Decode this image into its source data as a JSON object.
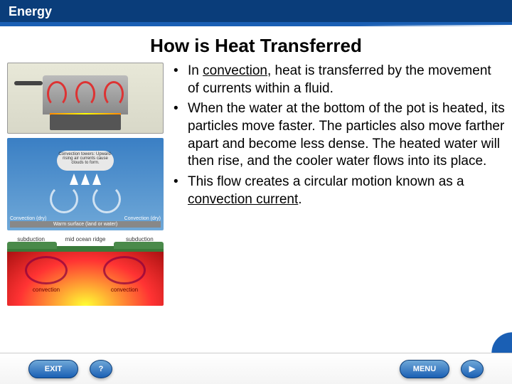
{
  "header": {
    "title": "Energy"
  },
  "slide": {
    "title": "How is Heat Transferred",
    "bullets": [
      {
        "prefix": "In ",
        "keyword": "convection",
        "suffix": ", heat is transferred by the movement of currents within a fluid."
      },
      {
        "text": "When the water at the bottom of the pot is heated, its particles move faster. The particles also move farther apart and become less dense. The heated water will then rise, and the cooler water flows into its place."
      },
      {
        "prefix": "This flow creates a circular motion known as a ",
        "keyword": "convection current",
        "suffix": "."
      }
    ]
  },
  "diagrams": {
    "cloud": {
      "top_text": "Convection towers: Upward-rising air currents cause clouds to form.",
      "left_label": "Convection (dry)",
      "right_label": "Convection (dry)",
      "bottom_label": "Warm surface (land or water)"
    },
    "mantle": {
      "labels": [
        "subduction",
        "mid ocean ridge",
        "subduction"
      ],
      "loop_text": "convection"
    }
  },
  "footer": {
    "exit": "EXIT",
    "help": "?",
    "menu": "MENU",
    "next": "▶"
  }
}
